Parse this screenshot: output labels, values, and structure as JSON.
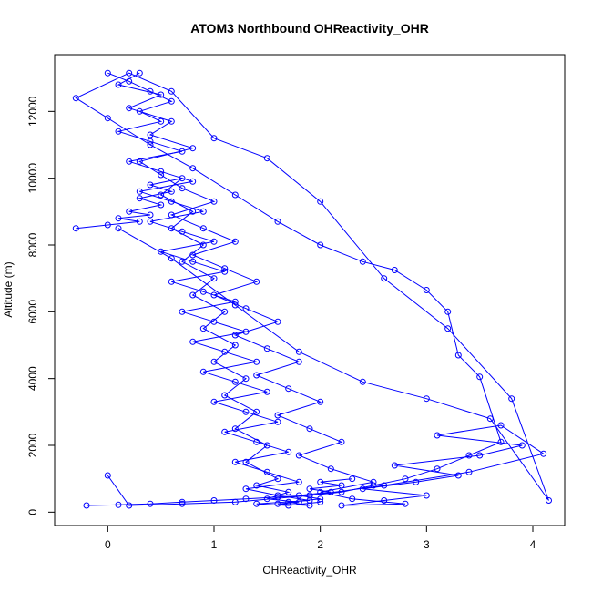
{
  "chart_data": {
    "type": "scatter",
    "title": "ATOM3 Northbound OHReactivity_OHR",
    "xlabel": "OHReactivity_OHR",
    "ylabel": "Altitude (m)",
    "xlim": [
      -0.5,
      4.3
    ],
    "ylim": [
      -400,
      13700
    ],
    "x_ticks": [
      0,
      1,
      2,
      3,
      4
    ],
    "x_tick_labels": [
      "0",
      "1",
      "2",
      "3",
      "4"
    ],
    "y_ticks": [
      0,
      2000,
      4000,
      6000,
      8000,
      10000,
      12000
    ],
    "y_tick_labels": [
      "0",
      "2000",
      "4000",
      "6000",
      "8000",
      "10000",
      "12000"
    ],
    "series_color": "#0000ff",
    "grid": false,
    "markers": "open-circle",
    "connected": true,
    "series": [
      {
        "x": [
          0.3,
          0.1,
          0.5,
          0.2,
          0.6,
          0.4,
          0.8,
          0.3,
          0.5,
          0.7,
          1.0,
          0.6,
          0.9,
          1.2,
          0.8,
          1.1,
          1.4,
          1.0,
          1.3,
          1.6,
          1.2,
          1.5,
          1.8,
          1.4,
          1.7,
          2.0,
          1.6,
          1.9,
          2.2,
          1.8,
          2.1,
          2.5,
          2.0,
          2.3,
          2.8,
          2.2,
          2.6,
          3.0,
          2.4,
          2.9,
          3.3,
          2.7,
          3.5,
          3.9,
          3.1,
          3.7,
          4.1,
          3.4,
          2.6,
          1.9,
          1.2,
          0.7,
          0.2,
          0.0
        ],
        "y": [
          13150,
          12800,
          12500,
          12100,
          11700,
          11300,
          10900,
          10500,
          10100,
          9700,
          9300,
          8900,
          8500,
          8100,
          7700,
          7300,
          6900,
          6500,
          6100,
          5700,
          5300,
          4900,
          4500,
          4100,
          3700,
          3300,
          2900,
          2500,
          2100,
          1700,
          1300,
          900,
          600,
          400,
          250,
          200,
          350,
          500,
          700,
          900,
          1100,
          1400,
          1700,
          2000,
          2300,
          2600,
          1750,
          1200,
          800,
          500,
          300,
          250,
          200,
          1100
        ]
      },
      {
        "x": [
          -0.2,
          0.1,
          0.4,
          0.7,
          1.0,
          1.3,
          1.6,
          1.9,
          2.2,
          2.5,
          2.8,
          3.1,
          3.4,
          3.7,
          3.5,
          3.3,
          3.2,
          3.0,
          2.7,
          2.4,
          2.0,
          1.6,
          1.2,
          0.8,
          0.4,
          0.0,
          -0.3,
          0.2,
          0.6,
          1.0,
          1.5,
          2.0,
          2.6,
          3.2,
          3.8,
          4.15,
          3.6,
          3.0,
          2.4,
          1.8,
          1.2,
          0.6,
          0.1
        ],
        "y": [
          200,
          220,
          250,
          300,
          350,
          400,
          450,
          500,
          600,
          800,
          1000,
          1300,
          1700,
          2100,
          4050,
          4700,
          6000,
          6650,
          7250,
          7500,
          8000,
          8700,
          9500,
          10300,
          11000,
          11800,
          12400,
          13150,
          12600,
          11200,
          10600,
          9300,
          7000,
          5500,
          3400,
          350,
          2800,
          3400,
          3900,
          4800,
          6200,
          7600,
          8500
        ]
      },
      {
        "x": [
          0.0,
          0.2,
          0.4,
          0.6,
          0.3,
          0.5,
          0.1,
          0.4,
          0.7,
          0.2,
          0.5,
          0.8,
          0.3,
          0.6,
          0.9,
          0.4,
          0.7,
          1.0,
          0.5,
          0.8,
          1.1,
          0.6,
          0.9,
          1.2,
          0.7,
          1.0,
          1.3,
          0.8,
          1.1,
          1.4,
          0.9,
          1.2,
          1.5,
          1.0,
          1.3,
          1.6,
          1.1,
          1.4,
          1.7,
          1.2,
          1.5,
          1.8,
          1.3,
          1.6,
          1.9,
          1.4,
          1.7,
          2.0
        ],
        "y": [
          13150,
          12900,
          12600,
          12300,
          12000,
          11700,
          11400,
          11100,
          10800,
          10500,
          10200,
          9900,
          9600,
          9300,
          9000,
          8700,
          8400,
          8100,
          7800,
          7500,
          7200,
          6900,
          6600,
          6300,
          6000,
          5700,
          5400,
          5100,
          4800,
          4500,
          4200,
          3900,
          3600,
          3300,
          3000,
          2700,
          2400,
          2100,
          1800,
          1500,
          1200,
          900,
          700,
          500,
          350,
          250,
          200,
          300
        ]
      },
      {
        "x": [
          -0.3,
          0.0,
          0.3,
          0.1,
          0.4,
          0.2,
          0.5,
          0.3,
          0.6,
          0.4,
          0.7,
          0.5,
          0.8,
          0.6,
          0.9,
          0.7,
          1.0,
          0.8,
          1.1,
          0.9,
          1.2,
          1.0,
          1.3,
          1.1,
          1.4,
          1.2,
          1.5,
          1.3,
          1.6,
          1.4,
          1.7,
          1.5,
          1.8,
          1.6,
          1.9,
          1.7,
          2.0,
          1.8,
          2.1,
          1.9,
          2.2,
          2.0,
          2.3
        ],
        "y": [
          8500,
          8600,
          8700,
          8800,
          8900,
          9000,
          9200,
          9400,
          9600,
          9800,
          10000,
          9500,
          9000,
          8500,
          8000,
          7500,
          7000,
          6500,
          6000,
          5500,
          5000,
          4500,
          4000,
          3500,
          3000,
          2500,
          2000,
          1500,
          1000,
          800,
          600,
          400,
          300,
          250,
          200,
          300,
          400,
          500,
          600,
          700,
          800,
          900,
          1000
        ]
      }
    ]
  }
}
